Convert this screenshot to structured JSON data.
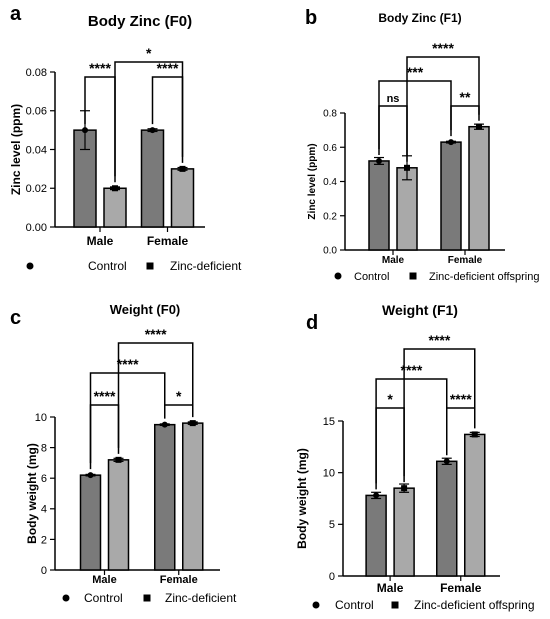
{
  "colors": {
    "control": "#7a7a7a",
    "zinc_deficient": "#a9a9a9",
    "stroke": "#000000"
  },
  "chart_data": [
    {
      "type": "bar",
      "letter": "a",
      "title": "Body Zinc (F0)",
      "ylabel": "Zinc level (ppm)",
      "xlabel": "",
      "categories": [
        "Male",
        "Female"
      ],
      "ylim": [
        0,
        0.08
      ],
      "yticks": [
        0.0,
        0.02,
        0.04,
        0.06,
        0.08
      ],
      "ytick_labels": [
        "0.00",
        "0.02",
        "0.04",
        "0.06",
        "0.08"
      ],
      "grid": false,
      "legend_position": "bottom",
      "series": [
        {
          "name": "Control",
          "marker": "circle",
          "values": [
            0.05,
            0.05
          ],
          "errors": [
            0.01,
            0.0007
          ]
        },
        {
          "name": "Zinc-deficient",
          "marker": "square",
          "values": [
            0.02,
            0.03
          ],
          "errors": [
            0.0007,
            0.0007
          ]
        }
      ],
      "significance": [
        {
          "from": [
            0,
            0
          ],
          "to": [
            0,
            1
          ],
          "label": "****"
        },
        {
          "from": [
            1,
            0
          ],
          "to": [
            1,
            1
          ],
          "label": "****"
        },
        {
          "from": [
            0,
            1
          ],
          "to": [
            1,
            1
          ],
          "label": "*"
        }
      ]
    },
    {
      "type": "bar",
      "letter": "b",
      "title": "Body Zinc (F1)",
      "ylabel": "Zinc level (ppm)",
      "xlabel": "",
      "categories": [
        "Male",
        "Female"
      ],
      "ylim": [
        0,
        0.8
      ],
      "yticks": [
        0.0,
        0.2,
        0.4,
        0.6,
        0.8
      ],
      "ytick_labels": [
        "0.0",
        "0.2",
        "0.4",
        "0.6",
        "0.8"
      ],
      "grid": false,
      "legend_position": "bottom",
      "series": [
        {
          "name": "Control",
          "marker": "circle",
          "values": [
            0.52,
            0.63
          ],
          "errors": [
            0.02,
            0.005
          ]
        },
        {
          "name": "Zinc-deficient offspring",
          "marker": "square",
          "values": [
            0.48,
            0.72
          ],
          "errors": [
            0.07,
            0.015
          ]
        }
      ],
      "significance": [
        {
          "from": [
            0,
            0
          ],
          "to": [
            0,
            1
          ],
          "label": "ns"
        },
        {
          "from": [
            1,
            0
          ],
          "to": [
            1,
            1
          ],
          "label": "**"
        },
        {
          "from": [
            0,
            0
          ],
          "to": [
            1,
            0
          ],
          "label": "***"
        },
        {
          "from": [
            0,
            1
          ],
          "to": [
            1,
            1
          ],
          "label": "****"
        }
      ]
    },
    {
      "type": "bar",
      "letter": "c",
      "title": "Weight (F0)",
      "ylabel": "Body weight (mg)",
      "xlabel": "",
      "categories": [
        "Male",
        "Female"
      ],
      "ylim": [
        0,
        10
      ],
      "yticks": [
        0,
        2,
        4,
        6,
        8,
        10
      ],
      "ytick_labels": [
        "0",
        "2",
        "4",
        "6",
        "8",
        "10"
      ],
      "grid": false,
      "legend_position": "bottom",
      "series": [
        {
          "name": "Control",
          "marker": "circle",
          "values": [
            6.2,
            9.5
          ],
          "errors": [
            0.05,
            0.05
          ]
        },
        {
          "name": "Zinc-deficient",
          "marker": "square",
          "values": [
            7.2,
            9.6
          ],
          "errors": [
            0.1,
            0.08
          ]
        }
      ],
      "significance": [
        {
          "from": [
            0,
            0
          ],
          "to": [
            0,
            1
          ],
          "label": "****"
        },
        {
          "from": [
            1,
            0
          ],
          "to": [
            1,
            1
          ],
          "label": "*"
        },
        {
          "from": [
            0,
            0
          ],
          "to": [
            1,
            0
          ],
          "label": "****"
        },
        {
          "from": [
            0,
            1
          ],
          "to": [
            1,
            1
          ],
          "label": "****"
        }
      ]
    },
    {
      "type": "bar",
      "letter": "d",
      "title": "Weight (F1)",
      "ylabel": "Body weight (mg)",
      "xlabel": "",
      "categories": [
        "Male",
        "Female"
      ],
      "ylim": [
        0,
        15
      ],
      "yticks": [
        0,
        5,
        10,
        15
      ],
      "ytick_labels": [
        "0",
        "5",
        "10",
        "15"
      ],
      "grid": false,
      "legend_position": "bottom",
      "series": [
        {
          "name": "Control",
          "marker": "circle",
          "values": [
            7.8,
            11.1
          ],
          "errors": [
            0.3,
            0.3
          ]
        },
        {
          "name": "Zinc-deficient offspring",
          "marker": "square",
          "values": [
            8.5,
            13.7
          ],
          "errors": [
            0.4,
            0.2
          ]
        }
      ],
      "significance": [
        {
          "from": [
            0,
            0
          ],
          "to": [
            0,
            1
          ],
          "label": "*"
        },
        {
          "from": [
            1,
            0
          ],
          "to": [
            1,
            1
          ],
          "label": "****"
        },
        {
          "from": [
            0,
            0
          ],
          "to": [
            1,
            0
          ],
          "label": "****"
        },
        {
          "from": [
            0,
            1
          ],
          "to": [
            1,
            1
          ],
          "label": "****"
        }
      ]
    }
  ]
}
